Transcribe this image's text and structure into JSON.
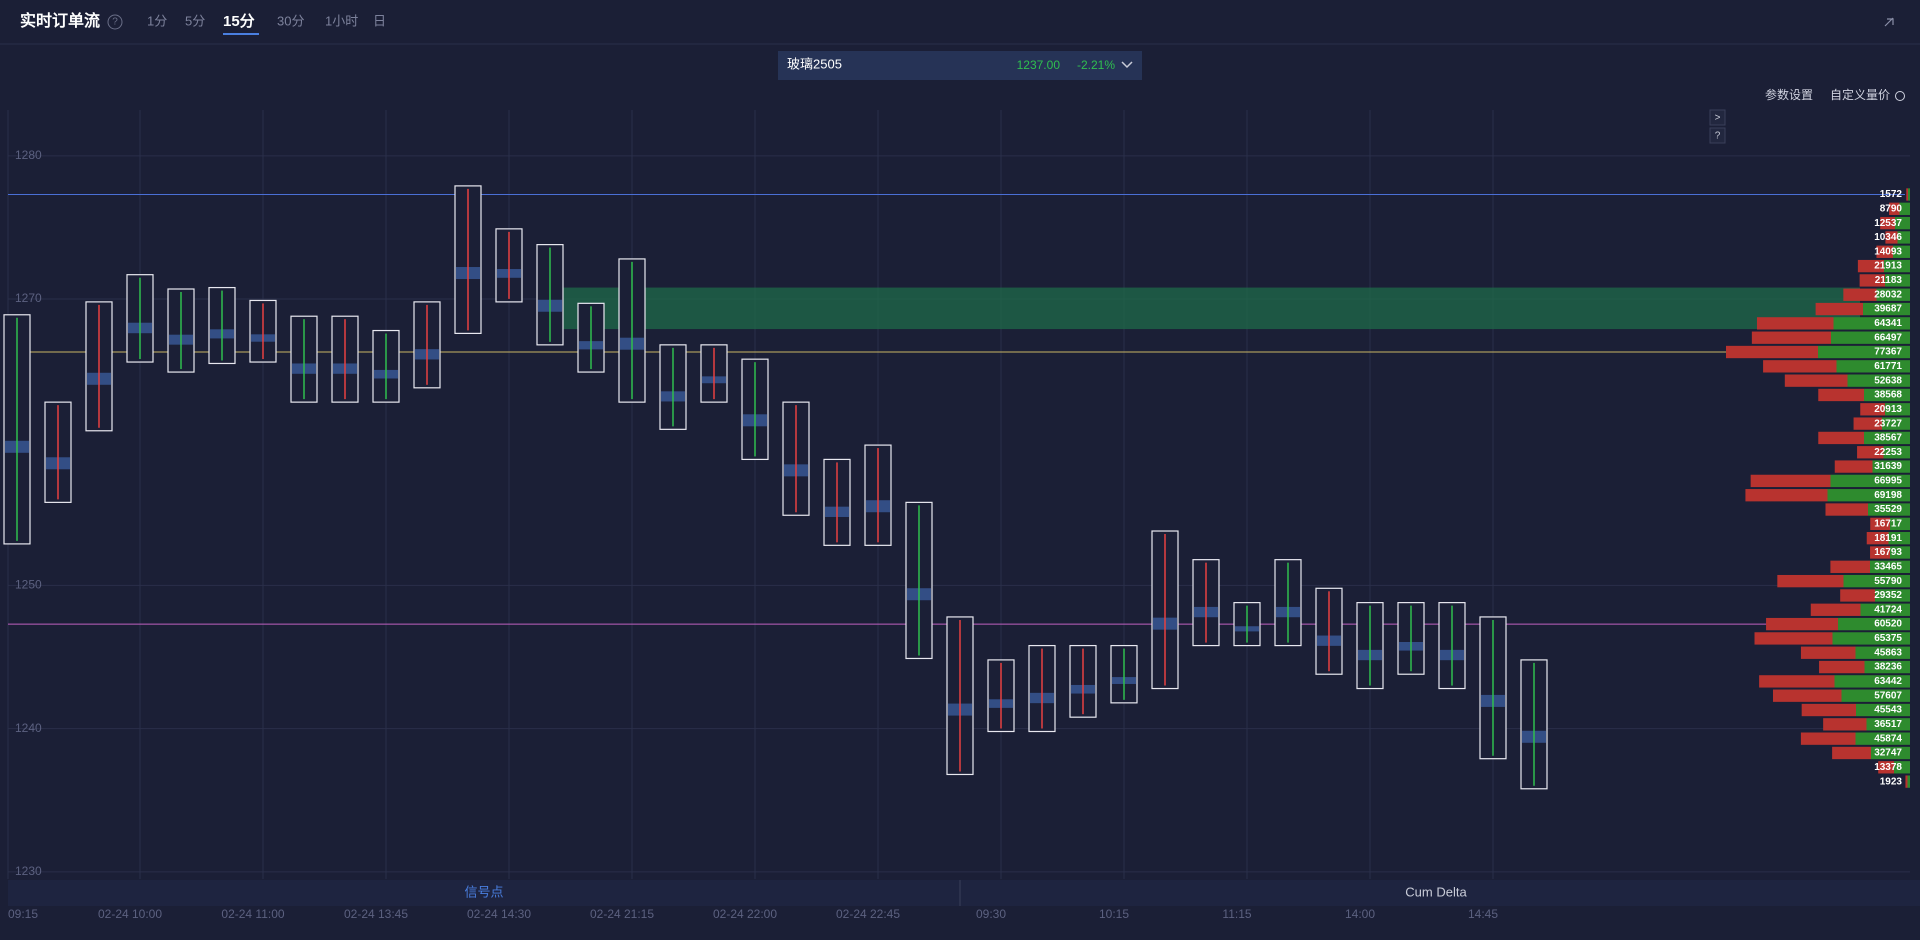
{
  "header": {
    "title": "实时订单流",
    "help": "?",
    "tabs": [
      "1分",
      "5分",
      "15分",
      "30分",
      "1小时",
      "日"
    ],
    "active_tab": 2
  },
  "instrument": {
    "name": "玻璃2505",
    "price": "1237.00",
    "change": "-2.21%"
  },
  "toolbar": {
    "settings": "参数设置",
    "custom": "自定义量价",
    "buttons": [
      ">",
      "?"
    ]
  },
  "panels": [
    "信号点",
    "Cum Delta"
  ],
  "chart_data": {
    "type": "footprint",
    "ylim": [
      1229.5,
      1283.2
    ],
    "yticks": [
      1230,
      1240,
      1250,
      1270,
      1280
    ],
    "grid": true,
    "categories": [
      "09:15",
      null,
      null,
      "02-24 10:00",
      null,
      null,
      "02-24 11:00",
      null,
      null,
      "02-24 13:45",
      null,
      null,
      "02-24 14:30",
      null,
      null,
      "02-24 21:15",
      null,
      null,
      "02-24 22:00",
      null,
      null,
      "02-24 22:45",
      null,
      null,
      "09:30",
      null,
      null,
      "10:15",
      null,
      null,
      "11:15",
      null,
      null,
      "14:00",
      null,
      null,
      "14:45",
      null
    ],
    "candles": [
      {
        "high": 1268.9,
        "low": 1252.9,
        "up": true
      },
      {
        "high": 1262.8,
        "low": 1255.8,
        "up": false
      },
      {
        "high": 1269.8,
        "low": 1260.8,
        "up": false
      },
      {
        "high": 1271.7,
        "low": 1265.6,
        "up": true
      },
      {
        "high": 1270.7,
        "low": 1264.9,
        "up": true
      },
      {
        "high": 1270.8,
        "low": 1265.5,
        "up": true
      },
      {
        "high": 1269.9,
        "low": 1265.6,
        "up": false
      },
      {
        "high": 1268.8,
        "low": 1262.8,
        "up": true
      },
      {
        "high": 1268.8,
        "low": 1262.8,
        "up": false
      },
      {
        "high": 1267.8,
        "low": 1262.8,
        "up": true
      },
      {
        "high": 1269.8,
        "low": 1263.8,
        "up": false
      },
      {
        "high": 1277.9,
        "low": 1267.6,
        "up": false
      },
      {
        "high": 1274.9,
        "low": 1269.8,
        "up": false
      },
      {
        "high": 1273.8,
        "low": 1266.8,
        "up": true
      },
      {
        "high": 1269.7,
        "low": 1264.9,
        "up": true
      },
      {
        "high": 1272.8,
        "low": 1262.8,
        "up": true
      },
      {
        "high": 1266.8,
        "low": 1260.9,
        "up": true
      },
      {
        "high": 1266.8,
        "low": 1262.8,
        "up": false
      },
      {
        "high": 1265.8,
        "low": 1258.8,
        "up": true
      },
      {
        "high": 1262.8,
        "low": 1254.9,
        "up": false
      },
      {
        "high": 1258.8,
        "low": 1252.8,
        "up": false
      },
      {
        "high": 1259.8,
        "low": 1252.8,
        "up": false
      },
      {
        "high": 1255.8,
        "low": 1244.9,
        "up": true
      },
      {
        "high": 1247.8,
        "low": 1236.8,
        "up": false
      },
      {
        "high": 1244.8,
        "low": 1239.8,
        "up": false
      },
      {
        "high": 1245.8,
        "low": 1239.8,
        "up": false
      },
      {
        "high": 1245.8,
        "low": 1240.8,
        "up": false
      },
      {
        "high": 1245.8,
        "low": 1241.8,
        "up": true
      },
      {
        "high": 1253.8,
        "low": 1242.8,
        "up": false
      },
      {
        "high": 1251.8,
        "low": 1245.8,
        "up": false
      },
      {
        "high": 1248.8,
        "low": 1245.8,
        "up": true
      },
      {
        "high": 1251.8,
        "low": 1245.8,
        "up": true
      },
      {
        "high": 1249.8,
        "low": 1243.8,
        "up": false
      },
      {
        "high": 1248.8,
        "low": 1242.8,
        "up": true
      },
      {
        "high": 1248.8,
        "low": 1243.8,
        "up": true
      },
      {
        "high": 1248.8,
        "low": 1242.8,
        "up": true
      },
      {
        "high": 1247.8,
        "low": 1237.9,
        "up": true
      },
      {
        "high": 1244.8,
        "low": 1235.8,
        "up": true
      }
    ],
    "levels": [
      {
        "value": 1277.3,
        "color": "#4a6fd6"
      },
      {
        "value": 1266.3,
        "color": "#c8b464"
      },
      {
        "value": 1247.3,
        "color": "#c060c0"
      }
    ],
    "zone": {
      "low": 1267.9,
      "high": 1270.8,
      "color": "#1f6b4a"
    },
    "profile": {
      "values": [
        1572,
        8790,
        12537,
        10346,
        14093,
        21913,
        21183,
        28032,
        39687,
        64341,
        66497,
        77367,
        61771,
        52638,
        38568,
        20913,
        23727,
        38567,
        22253,
        31639,
        66995,
        69198,
        35529,
        16717,
        18191,
        16793,
        33465,
        55790,
        29352,
        41724,
        60520,
        65375,
        45863,
        38236,
        63442,
        57607,
        45543,
        36517,
        45874,
        32747,
        13378,
        1923
      ],
      "sell_color": "#b8332f",
      "buy_color": "#2e8b2e"
    }
  }
}
